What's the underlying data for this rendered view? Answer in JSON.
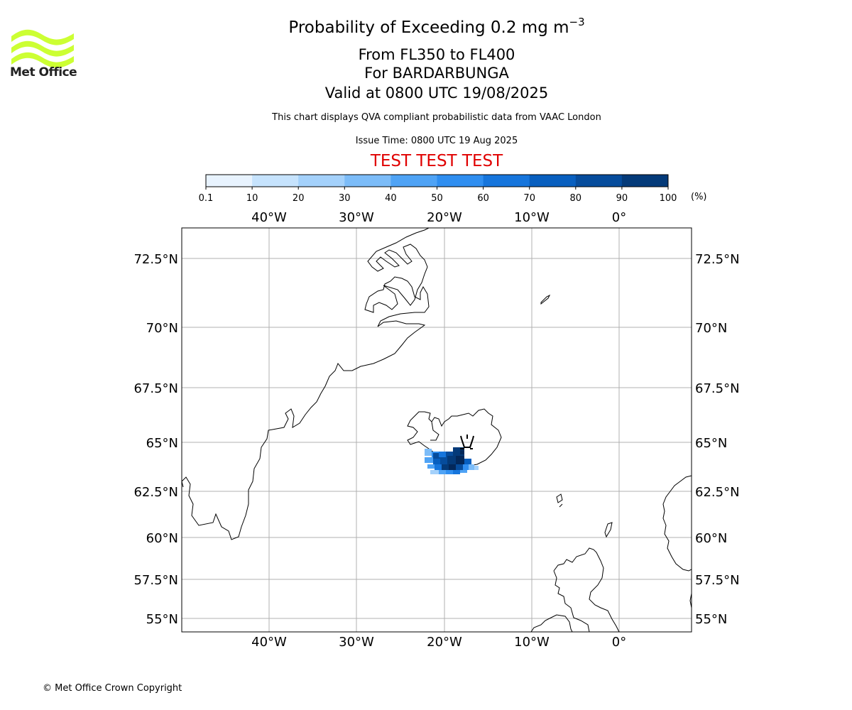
{
  "header": {
    "title_prefix": "Probability of Exceeding 0.2 mg m",
    "title_exponent": "−3",
    "subtitle_levels": "From FL350 to FL400",
    "subtitle_volcano": "For BARDARBUNGA",
    "subtitle_valid": "Valid at 0800 UTC 19/08/2025",
    "compliance_note": "This chart displays QVA compliant probabilistic data from VAAC London",
    "issue_time": "Issue Time: 0800 UTC 19 Aug 2025",
    "test_banner": "TEST TEST TEST"
  },
  "logo": {
    "text": "Met Office",
    "color": "#ccff33"
  },
  "colorbar": {
    "ticks": [
      "0.1",
      "10",
      "20",
      "30",
      "40",
      "50",
      "60",
      "70",
      "80",
      "90",
      "100"
    ],
    "unit": "(%)",
    "colors": [
      "#e8f3fe",
      "#c6e3fd",
      "#a4d1fb",
      "#7cbcf8",
      "#4fa3f5",
      "#2f8ef0",
      "#1675dc",
      "#085fbf",
      "#064c9c",
      "#043a79",
      "#03285a"
    ]
  },
  "map": {
    "longitude_labels": [
      "40°W",
      "30°W",
      "20°W",
      "10°W",
      "0°"
    ],
    "latitude_labels": [
      "72.5°N",
      "70°N",
      "67.5°N",
      "65°N",
      "62.5°N",
      "60°N",
      "57.5°N",
      "55°N"
    ],
    "gridline_color": "#b0b0b0",
    "volcano_marker": "volcano-icon"
  },
  "footer": {
    "copyright": "© Met Office Crown Copyright"
  }
}
